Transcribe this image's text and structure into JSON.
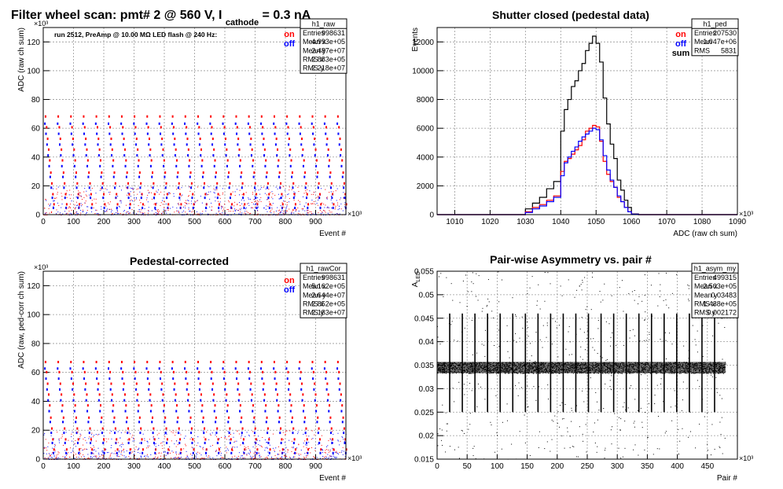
{
  "page_title": {
    "main": "Filter wheel scan: pmt#   2 @   560 V, I",
    "sub": "cathode",
    "tail": " = 0.3 nA"
  },
  "colors": {
    "on": "#ff0000",
    "off": "#0000ff",
    "sum": "#000000",
    "grid": "#9a9a9a"
  },
  "chart_data": [
    {
      "type": "scatter",
      "title": "",
      "ylabel": "ADC (raw ch sum)",
      "xlabel": "Event #",
      "xlim": [
        0,
        1000000
      ],
      "ylim": [
        0,
        130000
      ],
      "x_ticks": [
        "0",
        "100",
        "200",
        "300",
        "400",
        "500",
        "600",
        "700",
        "800",
        "900"
      ],
      "x_exp": "×10³",
      "y_ticks": [
        "0",
        "20",
        "40",
        "60",
        "80",
        "100",
        "120"
      ],
      "y_exp": "×10³",
      "annotation": "run 2512, PreAmp @ 10.00 MΩ LED flash @  240 Hz:",
      "legend": [
        {
          "label": "on",
          "color": "#ff0000"
        },
        {
          "label": "off",
          "color": "#0000ff"
        }
      ],
      "stats": {
        "name": "h1_raw",
        "rows": [
          [
            "Entries",
            "998631"
          ],
          [
            "Mean x",
            "4.993e+05"
          ],
          [
            "Mean y",
            "2.487e+07"
          ],
          [
            "RMS x",
            "2.883e+05"
          ],
          [
            "RMS y",
            "2.218e+07"
          ]
        ]
      },
      "cycle_period": 42000,
      "on_levels": [
        69000,
        61500,
        53500,
        46000,
        38500,
        30000,
        22500,
        15000,
        8000
      ],
      "off_levels": [
        64000,
        57000,
        49500,
        42000,
        34500,
        27000,
        19500,
        12500,
        5500
      ]
    },
    {
      "type": "line",
      "title": "Shutter closed (pedestal data)",
      "ylabel": "Events",
      "xlabel": "ADC (raw ch sum)",
      "xlim": [
        1005000,
        1090000
      ],
      "ylim": [
        0,
        13000
      ],
      "x_ticks": [
        "1010",
        "1020",
        "1030",
        "1040",
        "1050",
        "1060",
        "1070",
        "1080",
        "1090"
      ],
      "x_exp": "×10³",
      "y_ticks": [
        "0",
        "2000",
        "4000",
        "6000",
        "8000",
        "10000",
        "12000"
      ],
      "legend": [
        {
          "label": "on",
          "color": "#ff0000"
        },
        {
          "label": "off",
          "color": "#0000ff"
        },
        {
          "label": "sum",
          "color": "#000000"
        }
      ],
      "stats": {
        "name": "h1_ped",
        "rows": [
          [
            "Entries",
            "207530"
          ],
          [
            "Mean",
            "1.047e+06"
          ],
          [
            "RMS",
            "5831"
          ]
        ]
      },
      "bin_edges": [
        1030000,
        1032000,
        1034000,
        1036000,
        1038000,
        1040000,
        1041000,
        1042000,
        1043000,
        1044000,
        1045000,
        1046000,
        1047000,
        1048000,
        1049000,
        1050000,
        1051000,
        1052000,
        1053000,
        1054000,
        1055000,
        1056000,
        1057000,
        1058000,
        1059000,
        1060000,
        1062000
      ],
      "series": [
        {
          "name": "sum",
          "color": "#000000",
          "values": [
            400,
            800,
            1200,
            1800,
            2300,
            5800,
            7300,
            8000,
            8900,
            9300,
            10000,
            10500,
            11400,
            11900,
            12400,
            11900,
            10600,
            8100,
            6300,
            4900,
            3900,
            2400,
            1700,
            1000,
            500,
            50
          ]
        },
        {
          "name": "on",
          "color": "#ff0000",
          "values": [
            200,
            500,
            700,
            1000,
            1300,
            3000,
            3700,
            3900,
            4200,
            4500,
            4800,
            5200,
            5800,
            6000,
            6200,
            6100,
            5100,
            3700,
            2800,
            2300,
            1900,
            1200,
            900,
            500,
            200,
            30
          ]
        },
        {
          "name": "off",
          "color": "#0000ff",
          "values": [
            150,
            400,
            600,
            900,
            1200,
            2700,
            3600,
            4000,
            4400,
            4700,
            5100,
            5400,
            5600,
            5800,
            6000,
            5900,
            5200,
            4100,
            3100,
            2400,
            1900,
            1300,
            900,
            500,
            200,
            30
          ]
        }
      ]
    },
    {
      "type": "scatter",
      "title": "Pedestal-corrected",
      "ylabel": "ADC (raw, ped-corr ch sum)",
      "xlabel": "Event #",
      "xlim": [
        0,
        1000000
      ],
      "ylim": [
        0,
        130000
      ],
      "x_ticks": [
        "0",
        "100",
        "200",
        "300",
        "400",
        "500",
        "600",
        "700",
        "800",
        "900"
      ],
      "x_exp": "×10³",
      "y_ticks": [
        "0",
        "20",
        "40",
        "60",
        "80",
        "100",
        "120"
      ],
      "y_exp": "×10³",
      "legend": [
        {
          "label": "on",
          "color": "#ff0000"
        },
        {
          "label": "off",
          "color": "#0000ff"
        }
      ],
      "stats": {
        "name": "h1_rawCor",
        "rows": [
          [
            "Entries",
            "998631"
          ],
          [
            "Mean x",
            "5.162e+05"
          ],
          [
            "Mean y",
            "2.644e+07"
          ],
          [
            "RMS x",
            "2.852e+05"
          ],
          [
            "RMS y",
            "2.183e+07"
          ]
        ]
      },
      "cycle_period": 42000,
      "on_levels": [
        68000,
        61000,
        53000,
        45500,
        38000,
        29500,
        22000,
        14500,
        7500
      ],
      "off_levels": [
        63500,
        56500,
        49000,
        41500,
        34000,
        26500,
        19000,
        12000,
        5000
      ]
    },
    {
      "type": "scatter",
      "title": "Pair-wise Asymmetry vs. pair #",
      "ylabel": "A",
      "ylabel_sub": "LED",
      "xlabel": "Pair #",
      "xlim": [
        0,
        500000
      ],
      "ylim": [
        0.015,
        0.055
      ],
      "x_ticks": [
        "0",
        "50",
        "100",
        "150",
        "200",
        "250",
        "300",
        "350",
        "400",
        "450"
      ],
      "x_exp": "×10³",
      "y_ticks": [
        "0.015",
        "0.02",
        "0.025",
        "0.03",
        "0.035",
        "0.04",
        "0.045",
        "0.05",
        "0.055"
      ],
      "stats": {
        "name": "h1_asym_my",
        "rows": [
          [
            "Entries",
            "499315"
          ],
          [
            "Mean x",
            "2.503e+05"
          ],
          [
            "Mean y",
            "0.03483"
          ],
          [
            "RMS x",
            "1.438e+05"
          ],
          [
            "RMS y",
            "0.002172"
          ]
        ]
      },
      "band_center": 0.0345,
      "band_halfwidth": 0.0012,
      "spike_period": 21000,
      "spike_top": 0.046,
      "spike_bottom": 0.025
    }
  ]
}
